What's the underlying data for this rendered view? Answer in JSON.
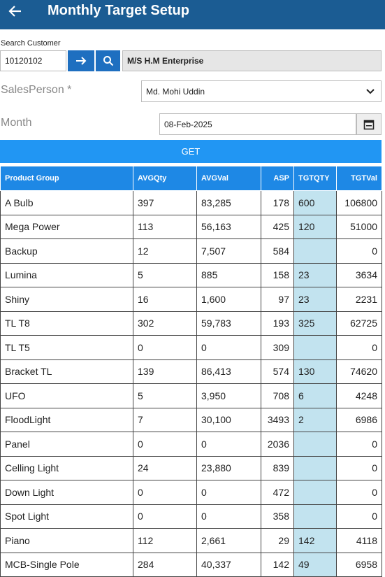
{
  "header": {
    "title": "Monthly Target Setup"
  },
  "form": {
    "search_label": "Search Customer",
    "customer_code": "10120102",
    "customer_name": "M/S H.M Enterprise",
    "salesperson_label": "SalesPerson *",
    "salesperson": "Md. Mohi Uddin",
    "month_label": "Month",
    "month": "08-Feb-2025",
    "get_button": "GET"
  },
  "table": {
    "columns": [
      "Product Group",
      "AVGQty",
      "AVGVal",
      "ASP",
      "TGTQTY",
      "TGTVal"
    ],
    "rows": [
      [
        "A Bulb",
        "397",
        "83,285",
        "178",
        "600",
        "106800"
      ],
      [
        "Mega Power",
        "113",
        "56,163",
        "425",
        "120",
        "51000"
      ],
      [
        "Backup",
        "12",
        "7,507",
        "584",
        null,
        "0"
      ],
      [
        "Lumina",
        "5",
        "885",
        "158",
        "23",
        "3634"
      ],
      [
        "Shiny",
        "16",
        "1,600",
        "97",
        "23",
        "2231"
      ],
      [
        "TL T8",
        "302",
        "59,783",
        "193",
        "325",
        "62725"
      ],
      [
        "TL T5",
        "0",
        "0",
        "309",
        null,
        "0"
      ],
      [
        "Bracket TL",
        "139",
        "86,413",
        "574",
        "130",
        "74620"
      ],
      [
        "UFO",
        "5",
        "3,950",
        "708",
        "6",
        "4248"
      ],
      [
        "FloodLight",
        "7",
        "30,100",
        "3493",
        "2",
        "6986"
      ],
      [
        "Panel",
        "0",
        "0",
        "2036",
        null,
        "0"
      ],
      [
        "Celling Light",
        "24",
        "23,880",
        "839",
        null,
        "0"
      ],
      [
        "Down Light",
        "0",
        "0",
        "472",
        null,
        "0"
      ],
      [
        "Spot Light",
        "0",
        "0",
        "358",
        null,
        "0"
      ],
      [
        "Piano",
        "112",
        "2,661",
        "29",
        "142",
        "4118"
      ],
      [
        "MCB-Single Pole",
        "284",
        "40,337",
        "142",
        "49",
        "6958"
      ]
    ]
  }
}
